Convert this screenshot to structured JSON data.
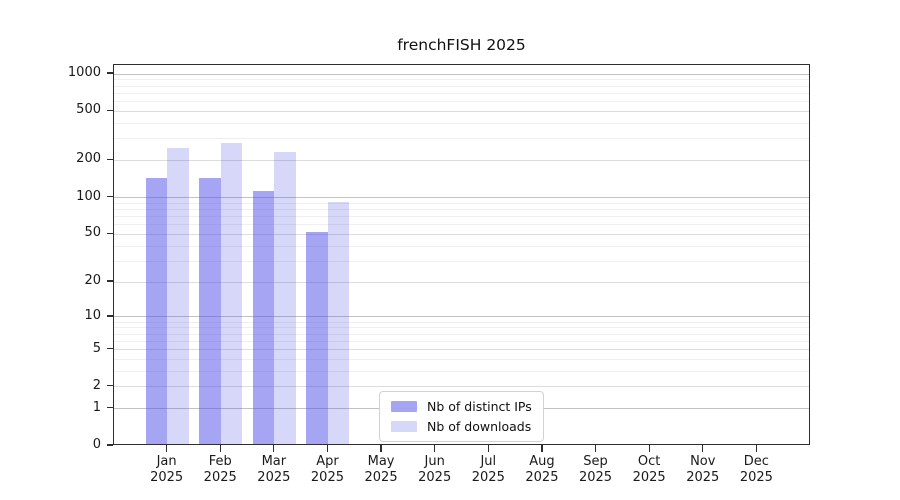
{
  "title": "frenchFISH 2025",
  "legend": {
    "items": [
      "Nb of distinct IPs",
      "Nb of downloads"
    ]
  },
  "y_axis": {
    "tick_labels": [
      "0",
      "1",
      "2",
      "5",
      "10",
      "20",
      "50",
      "100",
      "200",
      "500",
      "1000"
    ],
    "scale_note": "log10(value+1)"
  },
  "colors": {
    "ips_bar": "rgba(75,75,233,0.50)",
    "downloads_bar": "rgba(75,75,233,0.22)",
    "grid_decade": "#c2c2c2",
    "grid_labeled": "#dddddd",
    "grid_minor": "#efefef",
    "spine": "#2e2e2e"
  },
  "chart_data": {
    "type": "bar",
    "title": "frenchFISH 2025",
    "categories": [
      "Jan 2025",
      "Feb 2025",
      "Mar 2025",
      "Apr 2025",
      "May 2025",
      "Jun 2025",
      "Jul 2025",
      "Aug 2025",
      "Sep 2025",
      "Oct 2025",
      "Nov 2025",
      "Dec 2025"
    ],
    "series": [
      {
        "name": "Nb of distinct IPs",
        "color": "rgba(75,75,233,0.50)",
        "values": [
          138,
          140,
          108,
          50,
          0,
          0,
          0,
          0,
          0,
          0,
          0,
          0
        ]
      },
      {
        "name": "Nb of downloads",
        "color": "rgba(75,75,233,0.22)",
        "values": [
          243,
          267,
          224,
          88,
          0,
          0,
          0,
          0,
          0,
          0,
          0,
          0
        ]
      }
    ],
    "yscale": "log10(v+1)",
    "yticks": [
      0,
      1,
      2,
      5,
      10,
      20,
      50,
      100,
      200,
      500,
      1000
    ],
    "ylim": [
      0,
      1170
    ],
    "grid": true,
    "legend_position": "inside-bottom-center"
  }
}
